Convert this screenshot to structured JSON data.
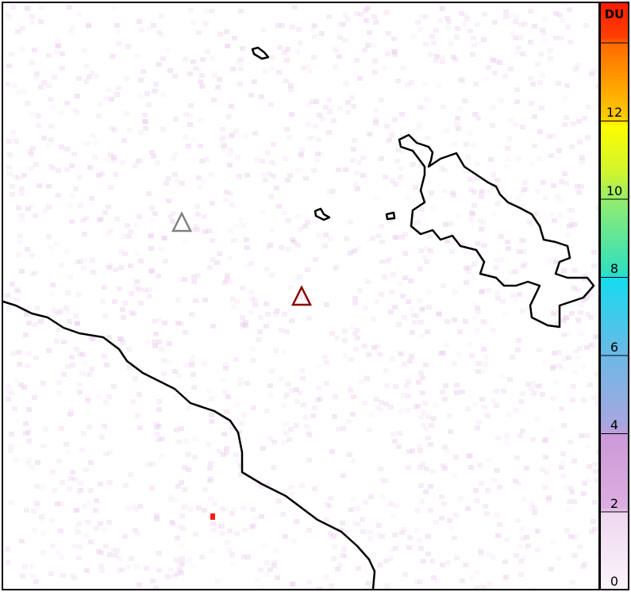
{
  "colorbar": {
    "unit": "DU",
    "ticks": [
      "0",
      "2",
      "4",
      "6",
      "8",
      "10",
      "12"
    ],
    "colors": [
      "#f6eef8",
      "#dcaee0",
      "#9fa7e0",
      "#15dcef",
      "#90ec70",
      "#fdfd00",
      "#ff7a00",
      "#ff1a00"
    ]
  },
  "markers": [
    {
      "name": "volcano-gray",
      "color": "#808080"
    },
    {
      "name": "volcano-dark-red",
      "color": "#8b0000"
    }
  ],
  "hotspot_color": "#ff1a1a"
}
